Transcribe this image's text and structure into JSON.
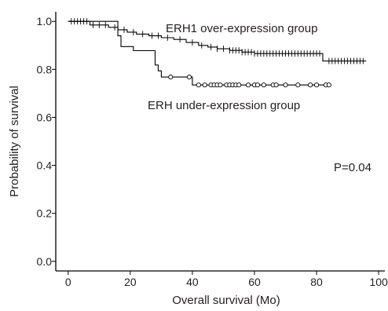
{
  "chart_data": {
    "type": "line",
    "subtype": "kaplan-meier",
    "title": "",
    "xlabel": "Overall survival (Mo)",
    "ylabel": "Probability of survival",
    "xlim": [
      -4,
      102
    ],
    "ylim": [
      -0.04,
      1.04
    ],
    "xticks": [
      0,
      20,
      40,
      60,
      80,
      100
    ],
    "xtick_labels": [
      "0",
      "20",
      "40",
      "60",
      "80",
      "100"
    ],
    "yticks": [
      0.0,
      0.2,
      0.4,
      0.6,
      0.8,
      1.0
    ],
    "ytick_labels": [
      "0.0",
      "0.2",
      "0.4",
      "0.6",
      "0.8",
      "1.0"
    ],
    "grid": false,
    "annotations": [
      {
        "id": "p-value",
        "text": "P=0.04",
        "x": 87,
        "y": 0.4
      },
      {
        "id": "label-over",
        "text": "ERH1 over-expression group",
        "x": 61,
        "y": 0.99
      },
      {
        "id": "label-under",
        "text": "ERH under-expression group",
        "x": 62,
        "y": 0.66
      }
    ],
    "series": [
      {
        "id": "over",
        "steps": [
          [
            0,
            1.0
          ],
          [
            7,
            0.985
          ],
          [
            13,
            0.975
          ],
          [
            16,
            0.965
          ],
          [
            19,
            0.955
          ],
          [
            22,
            0.947
          ],
          [
            26,
            0.94
          ],
          [
            30,
            0.932
          ],
          [
            34,
            0.925
          ],
          [
            38,
            0.912
          ],
          [
            42,
            0.9
          ],
          [
            45,
            0.893
          ],
          [
            48,
            0.886
          ],
          [
            52,
            0.879
          ],
          [
            56,
            0.872
          ],
          [
            60,
            0.866
          ],
          [
            82,
            0.835
          ],
          [
            96,
            0.835
          ]
        ],
        "censor_marker": "plus",
        "censored": [
          1,
          2,
          3,
          4,
          5,
          6,
          8,
          10,
          12,
          15,
          18,
          21,
          24,
          27,
          29,
          32,
          36,
          40,
          43,
          46,
          48,
          50,
          52,
          53,
          54,
          55,
          56,
          57,
          58,
          59,
          60,
          61,
          62,
          63,
          64,
          65,
          66,
          67,
          68,
          69,
          70,
          71,
          72,
          73,
          74,
          75,
          76,
          77,
          78,
          79,
          80,
          81,
          84,
          85,
          86,
          87,
          88,
          89,
          90,
          91,
          92,
          93,
          94,
          95
        ]
      },
      {
        "id": "under",
        "steps": [
          [
            0,
            1.0
          ],
          [
            16,
            0.94
          ],
          [
            17,
            0.895
          ],
          [
            21,
            0.878
          ],
          [
            28,
            0.818
          ],
          [
            29,
            0.794
          ],
          [
            30,
            0.768
          ],
          [
            40,
            0.735
          ],
          [
            84,
            0.735
          ]
        ],
        "censor_marker": "circle",
        "censored": [
          33,
          39,
          42,
          44,
          46,
          47,
          48,
          49,
          51,
          52,
          53,
          54,
          55,
          58,
          60,
          61,
          63,
          66,
          67,
          70,
          74,
          78,
          80,
          83,
          84
        ]
      }
    ]
  }
}
